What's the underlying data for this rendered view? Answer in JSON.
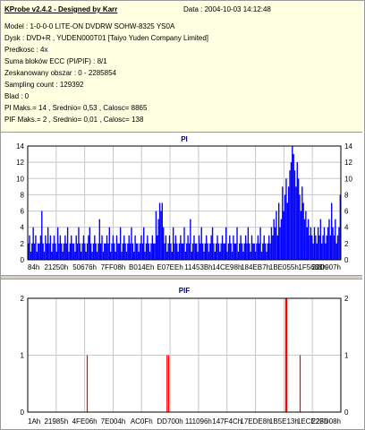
{
  "header": {
    "title": "KProbe v2.4.2 - Designed by Karr",
    "date": "Data : 2004-10-03 14:12:48"
  },
  "info_lines": [
    "Model : 1-0-0-0 LITE-ON DVDRW SOHW-8325  YS0A",
    "Dysk : DVD+R , YUDEN000T01 [Taiyo Yuden Company Limited]",
    "Predkosc : 4x",
    "Suma bloków ECC (PI/PIF) : 8/1",
    "Zeskanowany obszar : 0 - 2285854",
    "Sampling count : 129392",
    "Blad : 0",
    "PI Maks.= 14 , Srednio= 0,53 , Calosc= 8865",
    "PIF Maks.= 2 , Srednio= 0,01 , Calosc= 138"
  ],
  "chart_data": [
    {
      "type": "bar",
      "title": "PI",
      "ylim": [
        0,
        14
      ],
      "yticks": [
        0,
        2,
        4,
        6,
        8,
        10,
        12,
        14
      ],
      "xtick_labels": [
        "84h",
        "21250h",
        "50676h",
        "7FF08h",
        "B014Eh",
        "E07EEh",
        "11453Bh",
        "14CE98h",
        "184EB7h",
        "1BE055h",
        "1F5688h",
        "22D907h"
      ],
      "color": "#0000ff",
      "grid": true,
      "values": [
        2,
        3,
        1,
        2,
        4,
        2,
        3,
        1,
        2,
        2,
        3,
        6,
        2,
        1,
        3,
        2,
        4,
        2,
        3,
        1,
        2,
        3,
        2,
        1,
        4,
        2,
        3,
        2,
        1,
        2,
        3,
        2,
        4,
        1,
        2,
        3,
        2,
        2,
        1,
        3,
        2,
        4,
        2,
        1,
        2,
        3,
        2,
        1,
        2,
        3,
        4,
        2,
        1,
        2,
        3,
        2,
        1,
        2,
        5,
        2,
        3,
        1,
        2,
        2,
        3,
        2,
        4,
        1,
        2,
        3,
        2,
        1,
        3,
        2,
        2,
        4,
        1,
        2,
        3,
        2,
        1,
        2,
        3,
        2,
        4,
        2,
        1,
        3,
        2,
        2,
        1,
        2,
        3,
        2,
        4,
        1,
        2,
        3,
        2,
        1,
        2,
        3,
        2,
        2,
        6,
        3,
        5,
        7,
        6,
        7,
        4,
        2,
        3,
        1,
        2,
        3,
        2,
        1,
        4,
        2,
        3,
        2,
        1,
        2,
        3,
        2,
        2,
        4,
        1,
        2,
        3,
        2,
        5,
        1,
        2,
        3,
        2,
        2,
        1,
        3,
        2,
        4,
        2,
        1,
        2,
        3,
        2,
        1,
        2,
        3,
        4,
        2,
        1,
        2,
        3,
        2,
        1,
        2,
        3,
        2,
        2,
        4,
        1,
        2,
        3,
        2,
        1,
        3,
        2,
        2,
        4,
        1,
        2,
        3,
        2,
        1,
        2,
        3,
        2,
        4,
        2,
        1,
        3,
        2,
        2,
        1,
        2,
        3,
        2,
        4,
        1,
        2,
        3,
        2,
        1,
        2,
        3,
        2,
        4,
        3,
        5,
        4,
        6,
        3,
        7,
        4,
        5,
        9,
        6,
        8,
        10,
        7,
        9,
        11,
        12,
        14,
        13,
        11,
        9,
        12,
        10,
        8,
        6,
        9,
        7,
        5,
        6,
        4,
        5,
        3,
        4,
        3,
        2,
        4,
        3,
        2,
        4,
        3,
        5,
        2,
        3,
        4,
        2,
        3,
        4,
        5,
        3,
        7,
        4,
        3,
        5,
        2,
        3,
        4,
        8
      ]
    },
    {
      "type": "bar",
      "title": "PIF",
      "ylim": [
        0,
        2
      ],
      "yticks": [
        0,
        1,
        2
      ],
      "xtick_labels": [
        "1Ah",
        "21985h",
        "4FE06h",
        "7E004h",
        "AC0Fh",
        "DD700h",
        "111096h",
        "147F4Ch",
        "17EDE8h",
        "1B5E13h",
        "1ECE2Fh",
        "223D08h"
      ],
      "color": "#ff0000",
      "grid": true,
      "spikes": [
        {
          "x": 0.19,
          "value": 1
        },
        {
          "x": 0.445,
          "value": 1
        },
        {
          "x": 0.45,
          "value": 1
        },
        {
          "x": 0.824,
          "value": 2
        },
        {
          "x": 0.827,
          "value": 2
        },
        {
          "x": 0.87,
          "value": 1
        }
      ]
    }
  ]
}
